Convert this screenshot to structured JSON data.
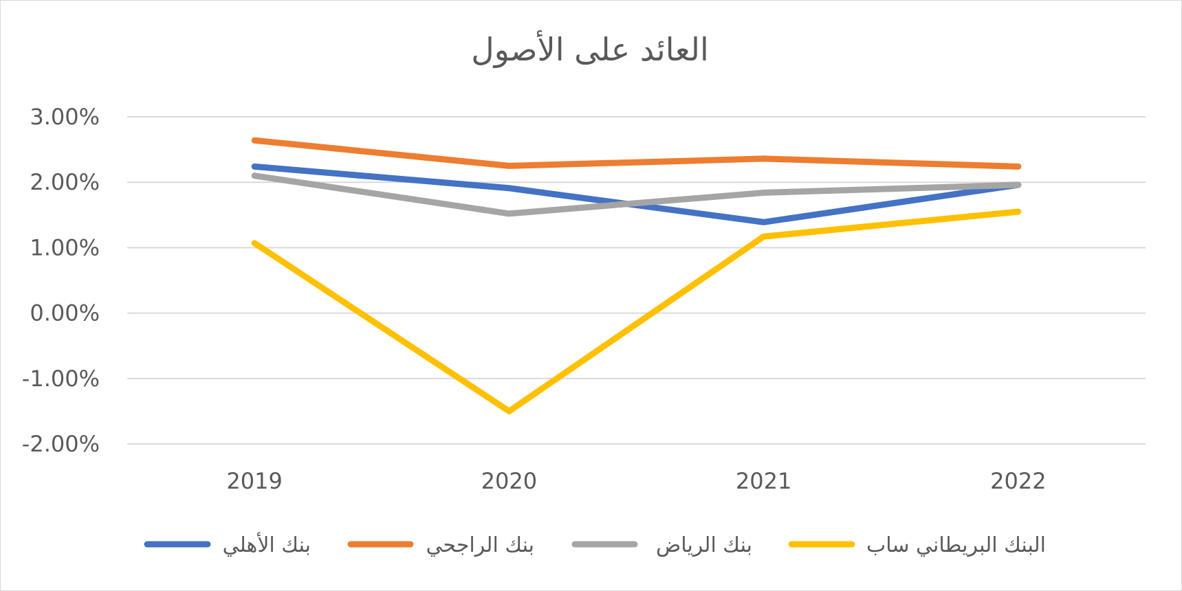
{
  "chart_data": {
    "type": "line",
    "title": "العائد على الأصول",
    "categories": [
      "2019",
      "2020",
      "2021",
      "2022"
    ],
    "y_ticks": [
      "3.00%",
      "2.00%",
      "1.00%",
      "0.00%",
      "-1.00%",
      "-2.00%"
    ],
    "ylim": [
      -2,
      3
    ],
    "grid": true,
    "legend_position": "bottom",
    "series": [
      {
        "name": "بنك الأهلي",
        "color": "#4472C4",
        "values": [
          2.24,
          1.91,
          1.39,
          1.96
        ]
      },
      {
        "name": "بنك الراجحي",
        "color": "#ED7D31",
        "values": [
          2.64,
          2.25,
          2.36,
          2.24
        ]
      },
      {
        "name": "بنك الرياض",
        "color": "#A5A5A5",
        "values": [
          2.1,
          1.52,
          1.84,
          1.96
        ]
      },
      {
        "name": "البنك البريطاني ساب",
        "color": "#FFC000",
        "values": [
          1.07,
          -1.5,
          1.17,
          1.55
        ]
      }
    ]
  }
}
